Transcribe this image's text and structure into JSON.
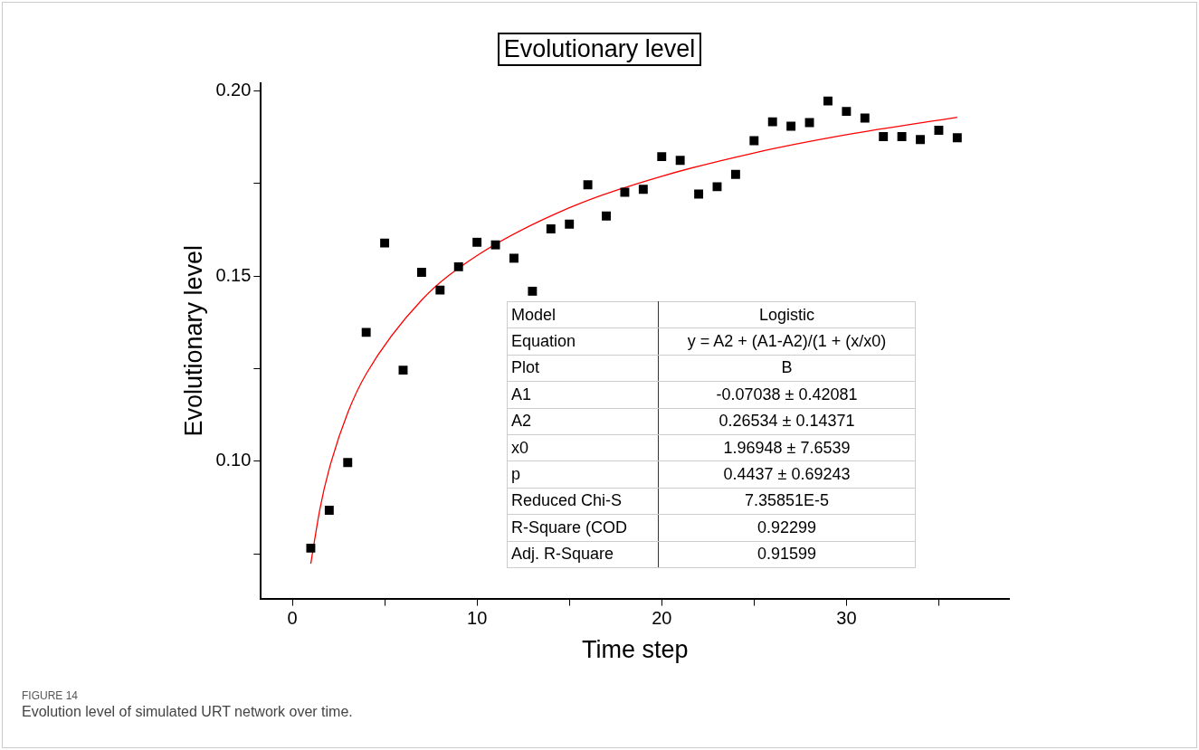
{
  "chart_data": {
    "type": "scatter",
    "title": "Evolutionary level",
    "xlabel": "Time step",
    "ylabel": "Evolutionary level",
    "x": [
      1,
      2,
      3,
      4,
      5,
      6,
      7,
      8,
      9,
      10,
      11,
      12,
      13,
      14,
      15,
      16,
      17,
      18,
      19,
      20,
      21,
      22,
      23,
      24,
      25,
      26,
      27,
      28,
      29,
      30,
      31,
      32,
      33,
      34,
      35,
      36
    ],
    "series": [
      {
        "color": "#000000",
        "marker": "square",
        "values": [
          0.0766,
          0.0868,
          0.0997,
          0.1348,
          0.1589,
          0.1246,
          0.151,
          0.1462,
          0.1525,
          0.1591,
          0.1584,
          0.1548,
          0.1459,
          0.1627,
          0.164,
          0.1746,
          0.1662,
          0.1726,
          0.1734,
          0.1822,
          0.1812,
          0.1721,
          0.1741,
          0.1774,
          0.1865,
          0.1916,
          0.1904,
          0.1914,
          0.1972,
          0.1944,
          0.1926,
          0.1876,
          0.1876,
          0.1868,
          0.1893,
          0.1873
        ]
      },
      {
        "type": "line",
        "color": "#ff0000",
        "marker": "none",
        "x": [
          1,
          1.5,
          2,
          3,
          4,
          7,
          10,
          15,
          20,
          25,
          30,
          36
        ],
        "values": [
          0.0724,
          0.0873,
          0.098,
          0.1131,
          0.1236,
          0.1435,
          0.1555,
          0.1684,
          0.1769,
          0.1832,
          0.1881,
          0.1928
        ]
      }
    ],
    "xlim": [
      -1.7,
      38.8
    ],
    "xticks": [
      0,
      {
        "value": 5,
        "label": null
      },
      10,
      {
        "value": 15,
        "label": null
      },
      20,
      {
        "value": 25,
        "label": null
      },
      30,
      {
        "value": 35,
        "label": null
      }
    ],
    "ylim": [
      0.063,
      0.202
    ],
    "yticks": [
      {
        "value": 0.075,
        "label": null
      },
      {
        "value": 0.1,
        "label": "0.10"
      },
      {
        "value": 0.125,
        "label": null
      },
      {
        "value": 0.15,
        "label": "0.15"
      },
      {
        "value": 0.175,
        "label": null
      },
      {
        "value": 0.2,
        "label": "0.20"
      }
    ],
    "grid": false,
    "legend": false,
    "annotations": [
      "Model",
      "Logistic",
      "Equation",
      "y = A2 + (A1-A2)/(1 + (x/x0)",
      "Plot",
      "B",
      "A1",
      "-0.07038 ± 0.42081",
      "A2",
      "0.26534 ± 0.14371",
      "x0",
      "1.96948 ± 7.6539",
      "p",
      "0.4437 ± 0.69243",
      "Reduced Chi-S",
      "7.35851E-5",
      "R-Square (COD",
      "0.92299",
      "Adj. R-Square",
      "0.91599",
      "FIGURE 14",
      "Evolution level of simulated URT network over time."
    ]
  }
}
